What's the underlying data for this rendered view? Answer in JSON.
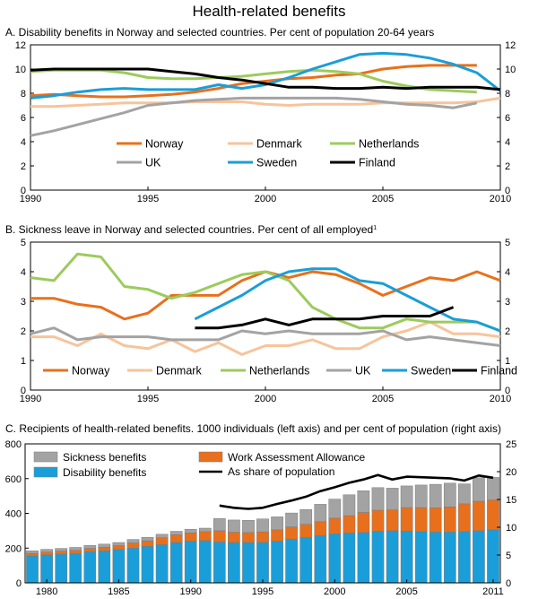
{
  "figure": {
    "title": "Health-related benefits"
  },
  "colors": {
    "norway": "#e8701c",
    "denmark": "#f7c49b",
    "netherlands": "#9ccb5c",
    "uk": "#a3a3a3",
    "sweden": "#1a9ed9",
    "finland": "#000000",
    "disability": "#1a9ed9",
    "waa": "#e8701c",
    "sickness": "#a3a3a3",
    "bar_edge": "#7a7a7a"
  },
  "chart_data": [
    {
      "id": "A",
      "type": "line",
      "title": "A.  Disability benefits in Norway and selected countries. Per cent of population 20-64 years",
      "xlabel": "",
      "ylabel": "",
      "xlim": [
        1990,
        2010
      ],
      "ylim": [
        0,
        12
      ],
      "xticks": [
        1990,
        1995,
        2000,
        2005,
        2010
      ],
      "yticks": [
        0,
        2,
        4,
        6,
        8,
        10,
        12
      ],
      "grid": false,
      "legend": "bottom-center",
      "series": [
        {
          "name": "Norway",
          "key": "norway",
          "x": [
            1990,
            1991,
            1992,
            1993,
            1994,
            1995,
            1996,
            1997,
            1998,
            1999,
            2000,
            2001,
            2002,
            2003,
            2004,
            2005,
            2006,
            2007,
            2008,
            2009
          ],
          "y": [
            7.8,
            7.9,
            7.8,
            7.7,
            7.7,
            7.8,
            7.9,
            8.1,
            8.4,
            8.8,
            9.0,
            9.2,
            9.3,
            9.5,
            9.6,
            10.0,
            10.2,
            10.3,
            10.3,
            10.3
          ]
        },
        {
          "name": "Denmark",
          "key": "denmark",
          "x": [
            1990,
            1991,
            1992,
            1993,
            1994,
            1995,
            1996,
            1997,
            1998,
            1999,
            2000,
            2001,
            2002,
            2003,
            2004,
            2005,
            2006,
            2007,
            2008,
            2009,
            2010
          ],
          "y": [
            6.9,
            6.9,
            7.0,
            7.1,
            7.2,
            7.2,
            7.2,
            7.3,
            7.3,
            7.3,
            7.1,
            7.0,
            7.1,
            7.1,
            7.1,
            7.2,
            7.2,
            7.2,
            7.2,
            7.3,
            7.6
          ]
        },
        {
          "name": "Netherlands",
          "key": "netherlands",
          "x": [
            1990,
            1991,
            1992,
            1993,
            1994,
            1995,
            1996,
            1997,
            1998,
            1999,
            2000,
            2001,
            2002,
            2003,
            2004,
            2005,
            2006,
            2007,
            2008,
            2009
          ],
          "y": [
            9.8,
            9.9,
            9.9,
            9.9,
            9.7,
            9.3,
            9.2,
            9.2,
            9.3,
            9.4,
            9.6,
            9.8,
            9.9,
            9.8,
            9.6,
            9.0,
            8.6,
            8.3,
            8.2,
            8.1
          ]
        },
        {
          "name": "UK",
          "key": "uk",
          "x": [
            1990,
            1991,
            1992,
            1993,
            1994,
            1995,
            1996,
            1997,
            1998,
            1999,
            2000,
            2001,
            2002,
            2003,
            2004,
            2005,
            2006,
            2007,
            2008,
            2009
          ],
          "y": [
            4.5,
            4.9,
            5.4,
            5.9,
            6.4,
            7.0,
            7.2,
            7.4,
            7.5,
            7.6,
            7.6,
            7.6,
            7.6,
            7.6,
            7.5,
            7.3,
            7.1,
            7.0,
            6.8,
            7.2
          ]
        },
        {
          "name": "Sweden",
          "key": "sweden",
          "x": [
            1990,
            1991,
            1992,
            1993,
            1994,
            1995,
            1996,
            1997,
            1998,
            1999,
            2000,
            2001,
            2002,
            2003,
            2004,
            2005,
            2006,
            2007,
            2008,
            2009,
            2010
          ],
          "y": [
            7.6,
            7.8,
            8.1,
            8.3,
            8.4,
            8.3,
            8.3,
            8.3,
            8.7,
            8.4,
            8.7,
            9.3,
            10.0,
            10.6,
            11.2,
            11.3,
            11.2,
            10.9,
            10.4,
            9.7,
            8.2
          ]
        },
        {
          "name": "Finland",
          "key": "finland",
          "x": [
            1990,
            1991,
            1992,
            1993,
            1994,
            1995,
            1996,
            1997,
            1998,
            1999,
            2000,
            2001,
            2002,
            2003,
            2004,
            2005,
            2006,
            2007,
            2008,
            2009,
            2010
          ],
          "y": [
            9.9,
            10.0,
            10.0,
            10.0,
            10.0,
            10.0,
            9.8,
            9.6,
            9.3,
            9.1,
            8.8,
            8.5,
            8.5,
            8.4,
            8.4,
            8.5,
            8.4,
            8.5,
            8.5,
            8.5,
            8.3
          ]
        }
      ]
    },
    {
      "id": "B",
      "type": "line",
      "title": "B.  Sickness leave in Norway and selected countries. Per cent of all employed",
      "title_footnote": "1",
      "xlabel": "",
      "ylabel": "",
      "xlim": [
        1990,
        2010
      ],
      "ylim": [
        0,
        5
      ],
      "xticks": [
        1990,
        1995,
        2000,
        2005,
        2010
      ],
      "yticks": [
        0,
        1,
        2,
        3,
        4,
        5
      ],
      "grid": false,
      "legend": "bottom-center",
      "series": [
        {
          "name": "Norway",
          "key": "norway",
          "x": [
            1990,
            1991,
            1992,
            1993,
            1994,
            1995,
            1996,
            1997,
            1998,
            1999,
            2000,
            2001,
            2002,
            2003,
            2004,
            2005,
            2006,
            2007,
            2008,
            2009,
            2010
          ],
          "y": [
            3.1,
            3.1,
            2.9,
            2.8,
            2.4,
            2.6,
            3.2,
            3.2,
            3.2,
            3.7,
            4.0,
            3.8,
            4.0,
            3.9,
            3.6,
            3.2,
            3.5,
            3.8,
            3.7,
            4.0,
            3.7
          ]
        },
        {
          "name": "Denmark",
          "key": "denmark",
          "x": [
            1990,
            1991,
            1992,
            1993,
            1994,
            1995,
            1996,
            1997,
            1998,
            1999,
            2000,
            2001,
            2002,
            2003,
            2004,
            2005,
            2006,
            2007,
            2008,
            2009,
            2010
          ],
          "y": [
            1.8,
            1.8,
            1.5,
            1.9,
            1.5,
            1.4,
            1.7,
            1.3,
            1.6,
            1.2,
            1.5,
            1.5,
            1.7,
            1.4,
            1.4,
            1.8,
            2.0,
            2.3,
            1.9,
            1.9,
            1.8
          ]
        },
        {
          "name": "Netherlands",
          "key": "netherlands",
          "x": [
            1990,
            1991,
            1992,
            1993,
            1994,
            1995,
            1996,
            1997,
            1998,
            1999,
            2000,
            2001,
            2002,
            2003,
            2004,
            2005,
            2006,
            2007,
            2008,
            2009,
            2010
          ],
          "y": [
            3.8,
            3.7,
            4.6,
            4.5,
            3.5,
            3.4,
            3.1,
            3.3,
            3.6,
            3.9,
            4.0,
            3.7,
            2.8,
            2.4,
            2.1,
            2.1,
            2.4,
            2.3,
            2.3,
            2.3,
            2.0
          ]
        },
        {
          "name": "UK",
          "key": "uk",
          "x": [
            1990,
            1991,
            1992,
            1993,
            1994,
            1995,
            1996,
            1997,
            1998,
            1999,
            2000,
            2001,
            2002,
            2003,
            2004,
            2005,
            2006,
            2007,
            2008,
            2009,
            2010
          ],
          "y": [
            1.9,
            2.1,
            1.7,
            1.8,
            1.8,
            1.8,
            1.7,
            1.7,
            1.7,
            2.0,
            1.9,
            2.0,
            1.9,
            1.9,
            1.9,
            2.0,
            1.7,
            1.8,
            1.7,
            1.6,
            1.5
          ]
        },
        {
          "name": "Sweden",
          "key": "sweden",
          "x": [
            1997,
            1998,
            1999,
            2000,
            2001,
            2002,
            2003,
            2004,
            2005,
            2006,
            2007,
            2008,
            2009,
            2010
          ],
          "y": [
            2.4,
            2.8,
            3.2,
            3.7,
            4.0,
            4.1,
            4.1,
            3.7,
            3.6,
            3.2,
            2.8,
            2.4,
            2.3,
            2.0
          ]
        },
        {
          "name": "Finland",
          "key": "finland",
          "x": [
            1997,
            1998,
            1999,
            2000,
            2001,
            2002,
            2003,
            2004,
            2005,
            2006,
            2007,
            2008
          ],
          "y": [
            2.1,
            2.1,
            2.2,
            2.4,
            2.2,
            2.4,
            2.4,
            2.4,
            2.5,
            2.5,
            2.5,
            2.8
          ]
        }
      ]
    },
    {
      "id": "C",
      "type": "bar",
      "stacked": true,
      "title": "C.  Recipients of health-related benefits. 1000 individuals (left axis) and per cent of population (right axis)",
      "xlabel": "",
      "ylabel": "",
      "categories": [
        1979,
        1980,
        1981,
        1982,
        1983,
        1984,
        1985,
        1986,
        1987,
        1988,
        1989,
        1990,
        1991,
        1992,
        1993,
        1994,
        1995,
        1996,
        1997,
        1998,
        1999,
        2000,
        2001,
        2002,
        2003,
        2004,
        2005,
        2006,
        2007,
        2008,
        2009,
        2010,
        2011
      ],
      "xticks": [
        1980,
        1985,
        1990,
        1995,
        2000,
        2005,
        2011
      ],
      "ylim": [
        0,
        800
      ],
      "yticks": [
        0,
        200,
        400,
        600,
        800
      ],
      "ylim_right": [
        0,
        25
      ],
      "yticks_right": [
        0,
        5,
        10,
        15,
        20,
        25
      ],
      "grid": false,
      "legend": "top",
      "series": [
        {
          "name": "Disability benefits",
          "key": "disability",
          "values": [
            155,
            162,
            165,
            170,
            180,
            185,
            192,
            200,
            210,
            220,
            232,
            240,
            243,
            235,
            232,
            232,
            233,
            240,
            252,
            262,
            272,
            282,
            287,
            290,
            298,
            300,
            298,
            295,
            292,
            292,
            295,
            300,
            305
          ]
        },
        {
          "name": "Work Assessment Allowance",
          "key": "waa",
          "values": [
            15,
            15,
            17,
            17,
            18,
            20,
            22,
            30,
            32,
            40,
            45,
            48,
            52,
            65,
            60,
            58,
            60,
            65,
            70,
            75,
            80,
            90,
            100,
            115,
            120,
            120,
            135,
            138,
            140,
            145,
            160,
            170,
            172
          ]
        },
        {
          "name": "Sickness benefits",
          "key": "sickness",
          "values": [
            15,
            16,
            16,
            17,
            17,
            18,
            18,
            20,
            20,
            20,
            20,
            20,
            20,
            70,
            70,
            70,
            75,
            75,
            80,
            85,
            100,
            110,
            120,
            125,
            130,
            125,
            125,
            130,
            135,
            137,
            115,
            135,
            130
          ]
        }
      ],
      "line": {
        "name": "As share of population",
        "axis": "right",
        "key": "finland",
        "x": [
          1992,
          1993,
          1994,
          1995,
          1996,
          1997,
          1998,
          1999,
          2000,
          2001,
          2002,
          2003,
          2004,
          2005,
          2006,
          2007,
          2008,
          2009,
          2010,
          2011
        ],
        "y": [
          13.9,
          13.5,
          13.3,
          13.5,
          14.2,
          14.8,
          15.5,
          16.5,
          17.2,
          18.0,
          18.6,
          19.4,
          18.6,
          19.1,
          19.0,
          18.9,
          18.8,
          18.4,
          19.3,
          18.9
        ]
      }
    }
  ]
}
